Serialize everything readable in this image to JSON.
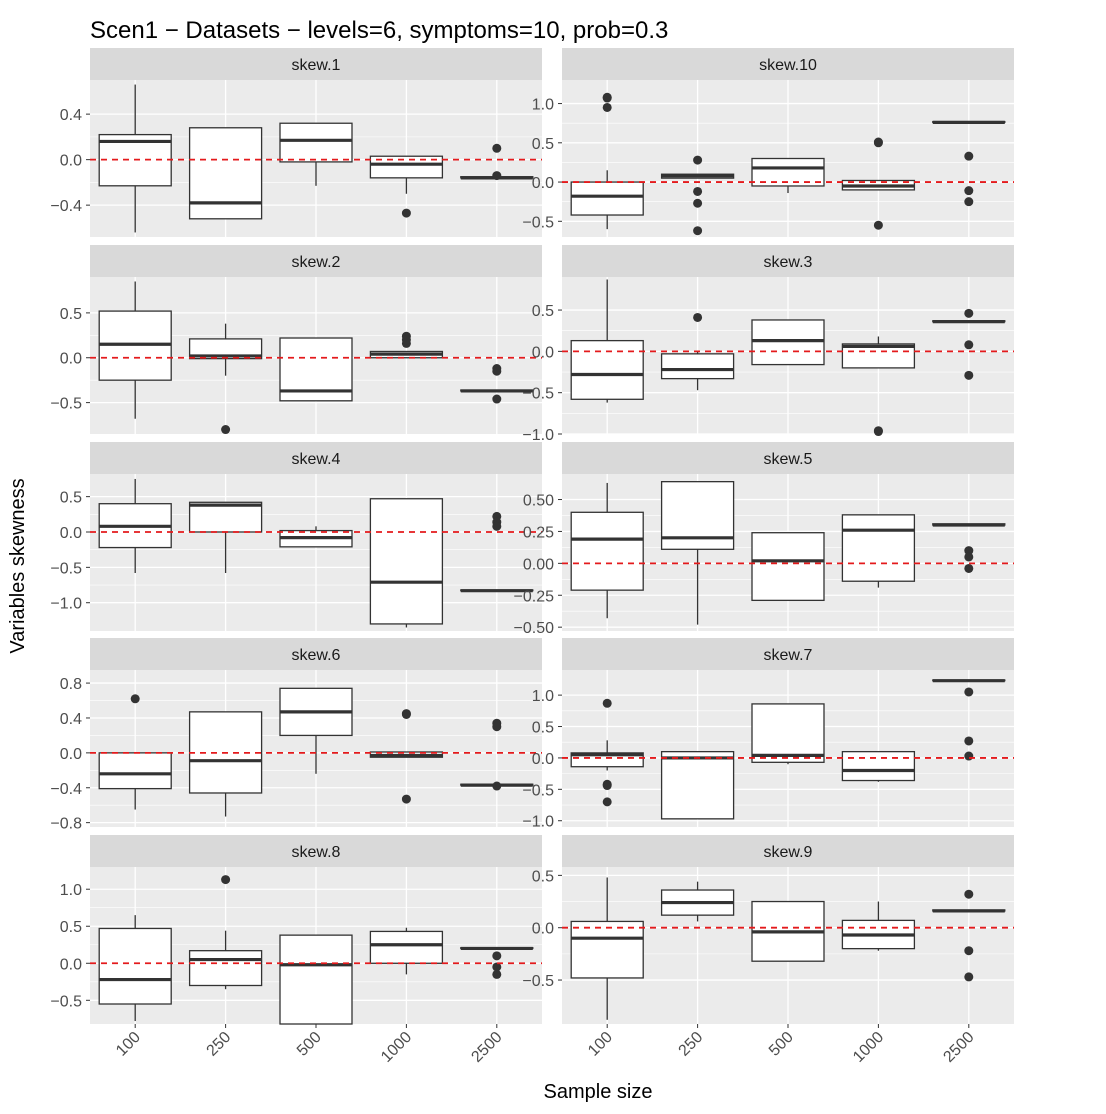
{
  "chart_data": {
    "type": "box",
    "title": "Scen1 − Datasets − levels=6, symptoms=10, prob=0.3",
    "xlabel": "Sample size",
    "ylabel": "Variables skewness",
    "categories": [
      "100",
      "250",
      "500",
      "1000",
      "2500"
    ],
    "reference_line": {
      "y": 0,
      "color": "#E41A1C",
      "style": "dashed"
    },
    "colors": {
      "panel_bg": "#EBEBEB",
      "strip_bg": "#D9D9D9",
      "grid": "#FFFFFF",
      "box_line": "#333333",
      "box_fill": "#FFFFFF"
    },
    "facets": [
      {
        "label": "skew.1",
        "ylim": [
          -0.68,
          0.7
        ],
        "ticks": [
          {
            "v": -0.4,
            "t": "−0.4"
          },
          {
            "v": 0.0,
            "t": "0.0"
          },
          {
            "v": 0.4,
            "t": "0.4"
          }
        ],
        "boxes": [
          {
            "lw": -0.64,
            "q1": -0.23,
            "med": 0.16,
            "q3": 0.22,
            "uw": 0.66,
            "out": []
          },
          {
            "lw": -0.52,
            "q1": -0.52,
            "med": -0.38,
            "q3": 0.28,
            "uw": 0.28,
            "out": []
          },
          {
            "lw": -0.23,
            "q1": -0.02,
            "med": 0.17,
            "q3": 0.32,
            "uw": 0.32,
            "out": []
          },
          {
            "lw": -0.3,
            "q1": -0.16,
            "med": -0.04,
            "q3": 0.03,
            "uw": 0.03,
            "out": [
              -0.47
            ]
          },
          {
            "lw": -0.16,
            "q1": -0.16,
            "med": -0.16,
            "q3": -0.15,
            "uw": -0.15,
            "out": [
              0.1,
              -0.14
            ]
          }
        ]
      },
      {
        "label": "skew.10",
        "ylim": [
          -0.7,
          1.3
        ],
        "ticks": [
          {
            "v": -0.5,
            "t": "−0.5"
          },
          {
            "v": 0.0,
            "t": "0.0"
          },
          {
            "v": 0.5,
            "t": "0.5"
          },
          {
            "v": 1.0,
            "t": "1.0"
          }
        ],
        "boxes": [
          {
            "lw": -0.6,
            "q1": -0.42,
            "med": -0.18,
            "q3": 0.0,
            "uw": 0.15,
            "out": [
              1.07,
              1.08,
              0.95
            ]
          },
          {
            "lw": 0.05,
            "q1": 0.05,
            "med": 0.08,
            "q3": 0.1,
            "uw": 0.1,
            "out": [
              0.28,
              -0.12,
              -0.27,
              -0.62
            ]
          },
          {
            "lw": -0.14,
            "q1": -0.05,
            "med": 0.18,
            "q3": 0.3,
            "uw": 0.3,
            "out": []
          },
          {
            "lw": -0.1,
            "q1": -0.1,
            "med": -0.05,
            "q3": 0.02,
            "uw": 0.02,
            "out": [
              0.5,
              0.51,
              -0.55
            ]
          },
          {
            "lw": 0.76,
            "q1": 0.76,
            "med": 0.76,
            "q3": 0.77,
            "uw": 0.77,
            "out": [
              0.33,
              -0.11,
              -0.25
            ]
          }
        ]
      },
      {
        "label": "skew.2",
        "ylim": [
          -0.85,
          0.9
        ],
        "ticks": [
          {
            "v": -0.5,
            "t": "−0.5"
          },
          {
            "v": 0.0,
            "t": "0.0"
          },
          {
            "v": 0.5,
            "t": "0.5"
          }
        ],
        "boxes": [
          {
            "lw": -0.68,
            "q1": -0.25,
            "med": 0.15,
            "q3": 0.52,
            "uw": 0.85,
            "out": []
          },
          {
            "lw": -0.2,
            "q1": -0.01,
            "med": 0.02,
            "q3": 0.21,
            "uw": 0.38,
            "out": [
              -0.8
            ]
          },
          {
            "lw": -0.48,
            "q1": -0.48,
            "med": -0.37,
            "q3": 0.22,
            "uw": 0.22,
            "out": []
          },
          {
            "lw": 0.0,
            "q1": 0.0,
            "med": 0.04,
            "q3": 0.07,
            "uw": 0.07,
            "out": [
              0.24,
              0.16,
              0.2
            ]
          },
          {
            "lw": -0.37,
            "q1": -0.37,
            "med": -0.37,
            "q3": -0.36,
            "uw": -0.36,
            "out": [
              -0.12,
              -0.15,
              -0.46
            ]
          }
        ]
      },
      {
        "label": "skew.3",
        "ylim": [
          -1.0,
          0.9
        ],
        "ticks": [
          {
            "v": -1.0,
            "t": "−1.0"
          },
          {
            "v": -0.5,
            "t": "−0.5"
          },
          {
            "v": 0.0,
            "t": "0.0"
          },
          {
            "v": 0.5,
            "t": "0.5"
          }
        ],
        "boxes": [
          {
            "lw": -0.62,
            "q1": -0.58,
            "med": -0.28,
            "q3": 0.13,
            "uw": 0.87,
            "out": []
          },
          {
            "lw": -0.47,
            "q1": -0.33,
            "med": -0.22,
            "q3": -0.03,
            "uw": 0.0,
            "out": [
              0.41
            ]
          },
          {
            "lw": -0.16,
            "q1": -0.16,
            "med": 0.13,
            "q3": 0.38,
            "uw": 0.38,
            "out": []
          },
          {
            "lw": -0.2,
            "q1": -0.2,
            "med": 0.06,
            "q3": 0.09,
            "uw": 0.18,
            "out": [
              -0.96,
              -0.97
            ]
          },
          {
            "lw": 0.36,
            "q1": 0.36,
            "med": 0.36,
            "q3": 0.37,
            "uw": 0.37,
            "out": [
              0.46,
              0.08,
              -0.29
            ]
          }
        ]
      },
      {
        "label": "skew.4",
        "ylim": [
          -1.4,
          0.82
        ],
        "ticks": [
          {
            "v": -1.0,
            "t": "−1.0"
          },
          {
            "v": -0.5,
            "t": "−0.5"
          },
          {
            "v": 0.0,
            "t": "0.0"
          },
          {
            "v": 0.5,
            "t": "0.5"
          }
        ],
        "boxes": [
          {
            "lw": -0.58,
            "q1": -0.22,
            "med": 0.08,
            "q3": 0.4,
            "uw": 0.75,
            "out": []
          },
          {
            "lw": -0.58,
            "q1": 0.0,
            "med": 0.38,
            "q3": 0.42,
            "uw": 0.42,
            "out": []
          },
          {
            "lw": -0.21,
            "q1": -0.21,
            "med": -0.08,
            "q3": 0.02,
            "uw": 0.08,
            "out": []
          },
          {
            "lw": -1.35,
            "q1": -1.3,
            "med": -0.71,
            "q3": 0.47,
            "uw": 0.47,
            "out": []
          },
          {
            "lw": -0.83,
            "q1": -0.83,
            "med": -0.83,
            "q3": -0.82,
            "uw": -0.82,
            "out": [
              0.22,
              0.14,
              0.08
            ]
          }
        ]
      },
      {
        "label": "skew.5",
        "ylim": [
          -0.53,
          0.7
        ],
        "ticks": [
          {
            "v": -0.5,
            "t": "−0.50"
          },
          {
            "v": -0.25,
            "t": "−0.25"
          },
          {
            "v": 0.0,
            "t": "0.00"
          },
          {
            "v": 0.25,
            "t": "0.25"
          },
          {
            "v": 0.5,
            "t": "0.50"
          }
        ],
        "boxes": [
          {
            "lw": -0.43,
            "q1": -0.21,
            "med": 0.19,
            "q3": 0.4,
            "uw": 0.63,
            "out": []
          },
          {
            "lw": -0.48,
            "q1": 0.11,
            "med": 0.2,
            "q3": 0.64,
            "uw": 0.64,
            "out": []
          },
          {
            "lw": -0.29,
            "q1": -0.29,
            "med": 0.02,
            "q3": 0.24,
            "uw": 0.24,
            "out": []
          },
          {
            "lw": -0.19,
            "q1": -0.14,
            "med": 0.26,
            "q3": 0.38,
            "uw": 0.38,
            "out": []
          },
          {
            "lw": 0.3,
            "q1": 0.3,
            "med": 0.3,
            "q3": 0.31,
            "uw": 0.31,
            "out": [
              0.1,
              0.05,
              -0.04
            ]
          }
        ]
      },
      {
        "label": "skew.6",
        "ylim": [
          -0.85,
          0.95
        ],
        "ticks": [
          {
            "v": -0.8,
            "t": "−0.8"
          },
          {
            "v": -0.4,
            "t": "−0.4"
          },
          {
            "v": 0.0,
            "t": "0.0"
          },
          {
            "v": 0.4,
            "t": "0.4"
          },
          {
            "v": 0.8,
            "t": "0.8"
          }
        ],
        "boxes": [
          {
            "lw": -0.65,
            "q1": -0.41,
            "med": -0.24,
            "q3": 0.0,
            "uw": 0.0,
            "out": [
              0.62
            ]
          },
          {
            "lw": -0.73,
            "q1": -0.46,
            "med": -0.09,
            "q3": 0.47,
            "uw": 0.47,
            "out": []
          },
          {
            "lw": -0.24,
            "q1": 0.2,
            "med": 0.47,
            "q3": 0.74,
            "uw": 0.74,
            "out": []
          },
          {
            "lw": -0.05,
            "q1": -0.05,
            "med": -0.03,
            "q3": 0.01,
            "uw": 0.01,
            "out": [
              0.44,
              0.45,
              -0.53
            ]
          },
          {
            "lw": -0.37,
            "q1": -0.37,
            "med": -0.37,
            "q3": -0.36,
            "uw": -0.36,
            "out": [
              0.34,
              0.3,
              -0.38
            ]
          }
        ]
      },
      {
        "label": "skew.7",
        "ylim": [
          -1.1,
          1.4
        ],
        "ticks": [
          {
            "v": -1.0,
            "t": "−1.0"
          },
          {
            "v": -0.5,
            "t": "−0.5"
          },
          {
            "v": 0.0,
            "t": "0.0"
          },
          {
            "v": 0.5,
            "t": "0.5"
          },
          {
            "v": 1.0,
            "t": "1.0"
          }
        ],
        "boxes": [
          {
            "lw": -0.2,
            "q1": -0.14,
            "med": 0.05,
            "q3": 0.08,
            "uw": 0.28,
            "out": [
              0.87,
              -0.42,
              -0.44,
              -0.7
            ]
          },
          {
            "lw": -0.97,
            "q1": -0.97,
            "med": 0.0,
            "q3": 0.1,
            "uw": 0.1,
            "out": []
          },
          {
            "lw": -0.1,
            "q1": -0.07,
            "med": 0.04,
            "q3": 0.86,
            "uw": 0.86,
            "out": []
          },
          {
            "lw": -0.38,
            "q1": -0.36,
            "med": -0.2,
            "q3": 0.1,
            "uw": 0.1,
            "out": []
          },
          {
            "lw": 1.23,
            "q1": 1.23,
            "med": 1.23,
            "q3": 1.24,
            "uw": 1.24,
            "out": [
              1.05,
              0.27,
              0.03
            ]
          }
        ]
      },
      {
        "label": "skew.8",
        "ylim": [
          -0.82,
          1.3
        ],
        "ticks": [
          {
            "v": -0.5,
            "t": "−0.5"
          },
          {
            "v": 0.0,
            "t": "0.0"
          },
          {
            "v": 0.5,
            "t": "0.5"
          },
          {
            "v": 1.0,
            "t": "1.0"
          }
        ],
        "boxes": [
          {
            "lw": -0.78,
            "q1": -0.55,
            "med": -0.22,
            "q3": 0.47,
            "uw": 0.65,
            "out": []
          },
          {
            "lw": -0.35,
            "q1": -0.3,
            "med": 0.05,
            "q3": 0.17,
            "uw": 0.44,
            "out": [
              1.13
            ]
          },
          {
            "lw": -0.82,
            "q1": -0.82,
            "med": -0.02,
            "q3": 0.38,
            "uw": 0.38,
            "out": []
          },
          {
            "lw": -0.15,
            "q1": 0.0,
            "med": 0.25,
            "q3": 0.43,
            "uw": 0.48,
            "out": []
          },
          {
            "lw": 0.2,
            "q1": 0.2,
            "med": 0.2,
            "q3": 0.21,
            "uw": 0.21,
            "out": [
              0.1,
              -0.05,
              -0.15
            ]
          }
        ]
      },
      {
        "label": "skew.9",
        "ylim": [
          -0.92,
          0.58
        ],
        "ticks": [
          {
            "v": -0.5,
            "t": "−0.5"
          },
          {
            "v": 0.0,
            "t": "0.0"
          },
          {
            "v": 0.5,
            "t": "0.5"
          }
        ],
        "boxes": [
          {
            "lw": -0.88,
            "q1": -0.48,
            "med": -0.1,
            "q3": 0.06,
            "uw": 0.48,
            "out": []
          },
          {
            "lw": 0.06,
            "q1": 0.12,
            "med": 0.24,
            "q3": 0.36,
            "uw": 0.44,
            "out": []
          },
          {
            "lw": -0.32,
            "q1": -0.32,
            "med": -0.04,
            "q3": 0.25,
            "uw": 0.25,
            "out": []
          },
          {
            "lw": -0.22,
            "q1": -0.2,
            "med": -0.07,
            "q3": 0.07,
            "uw": 0.25,
            "out": []
          },
          {
            "lw": 0.16,
            "q1": 0.16,
            "med": 0.16,
            "q3": 0.17,
            "uw": 0.17,
            "out": [
              0.32,
              -0.22,
              -0.47
            ]
          }
        ]
      }
    ]
  }
}
